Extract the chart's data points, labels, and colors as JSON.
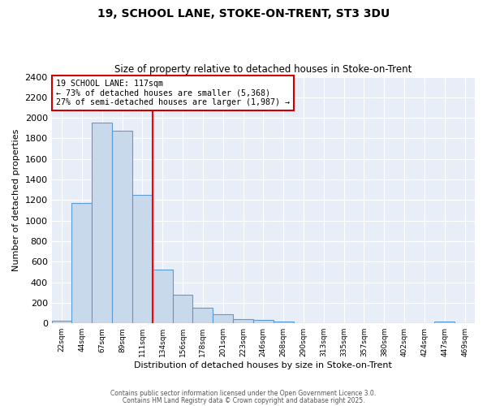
{
  "title1": "19, SCHOOL LANE, STOKE-ON-TRENT, ST3 3DU",
  "title2": "Size of property relative to detached houses in Stoke-on-Trent",
  "xlabel": "Distribution of detached houses by size in Stoke-on-Trent",
  "ylabel": "Number of detached properties",
  "bin_labels": [
    "22sqm",
    "44sqm",
    "67sqm",
    "89sqm",
    "111sqm",
    "134sqm",
    "156sqm",
    "178sqm",
    "201sqm",
    "223sqm",
    "246sqm",
    "268sqm",
    "290sqm",
    "313sqm",
    "335sqm",
    "357sqm",
    "380sqm",
    "402sqm",
    "424sqm",
    "447sqm",
    "469sqm"
  ],
  "bar_values": [
    25,
    1175,
    1950,
    1875,
    1250,
    520,
    275,
    155,
    90,
    45,
    35,
    20,
    5,
    5,
    5,
    5,
    2,
    2,
    2,
    20,
    0
  ],
  "bar_color": "#c9d9ec",
  "bar_edge_color": "#5b9bd5",
  "red_line_x": 4.5,
  "annotation_title": "19 SCHOOL LANE: 117sqm",
  "annotation_line1": "← 73% of detached houses are smaller (5,368)",
  "annotation_line2": "27% of semi-detached houses are larger (1,987) →",
  "annotation_box_color": "#ffffff",
  "annotation_box_edge": "#cc0000",
  "ylim": [
    0,
    2400
  ],
  "yticks": [
    0,
    200,
    400,
    600,
    800,
    1000,
    1200,
    1400,
    1600,
    1800,
    2000,
    2200,
    2400
  ],
  "footer1": "Contains HM Land Registry data © Crown copyright and database right 2025.",
  "footer2": "Contains public sector information licensed under the Open Government Licence 3.0.",
  "outer_bg": "#ffffff",
  "plot_bg": "#e8eef7",
  "grid_color": "#ffffff",
  "title1_fontsize": 10,
  "title2_fontsize": 8.5
}
